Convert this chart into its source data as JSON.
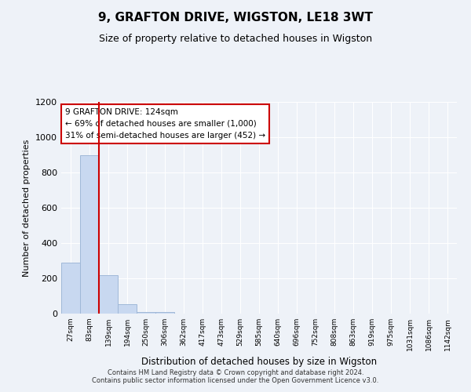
{
  "title": "9, GRAFTON DRIVE, WIGSTON, LE18 3WT",
  "subtitle": "Size of property relative to detached houses in Wigston",
  "xlabel": "Distribution of detached houses by size in Wigston",
  "ylabel": "Number of detached properties",
  "bin_labels": [
    "27sqm",
    "83sqm",
    "139sqm",
    "194sqm",
    "250sqm",
    "306sqm",
    "362sqm",
    "417sqm",
    "473sqm",
    "529sqm",
    "585sqm",
    "640sqm",
    "696sqm",
    "752sqm",
    "808sqm",
    "863sqm",
    "919sqm",
    "975sqm",
    "1031sqm",
    "1086sqm",
    "1142sqm"
  ],
  "bar_values": [
    290,
    900,
    220,
    55,
    10,
    10,
    0,
    0,
    0,
    0,
    0,
    0,
    0,
    0,
    0,
    0,
    0,
    0,
    0,
    0,
    0
  ],
  "bar_color": "#c8d8f0",
  "bar_edge_color": "#a0b8d8",
  "property_line_x": 2,
  "property_line_color": "#cc0000",
  "annotation_text": "9 GRAFTON DRIVE: 124sqm\n← 69% of detached houses are smaller (1,000)\n31% of semi-detached houses are larger (452) →",
  "annotation_box_color": "#ffffff",
  "annotation_box_edge": "#cc0000",
  "ylim": [
    0,
    1200
  ],
  "yticks": [
    0,
    200,
    400,
    600,
    800,
    1000,
    1200
  ],
  "footer_text": "Contains HM Land Registry data © Crown copyright and database right 2024.\nContains public sector information licensed under the Open Government Licence v3.0.",
  "bg_color": "#eef2f8",
  "plot_bg_color": "#eef2f8",
  "grid_color": "#ffffff"
}
